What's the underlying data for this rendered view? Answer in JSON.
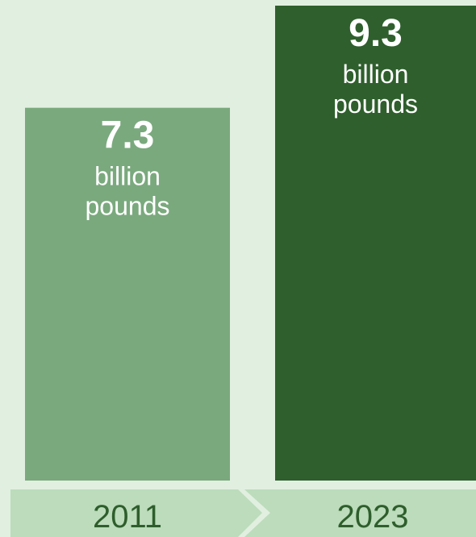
{
  "chart_data": {
    "type": "bar",
    "categories": [
      "2011",
      "2023"
    ],
    "values": [
      7.3,
      9.3
    ],
    "value_labels": [
      "7.3",
      "9.3"
    ],
    "unit_line1": "billion",
    "unit_line2": "pounds",
    "ylim": [
      0,
      9.3
    ],
    "colors": {
      "bars": [
        "#7aa97d",
        "#2f5f2d"
      ],
      "background": "#e1efe0",
      "category_band": "#bcdcbb",
      "category_text": "#2e5e2c",
      "label_text": "#ffffff"
    }
  }
}
